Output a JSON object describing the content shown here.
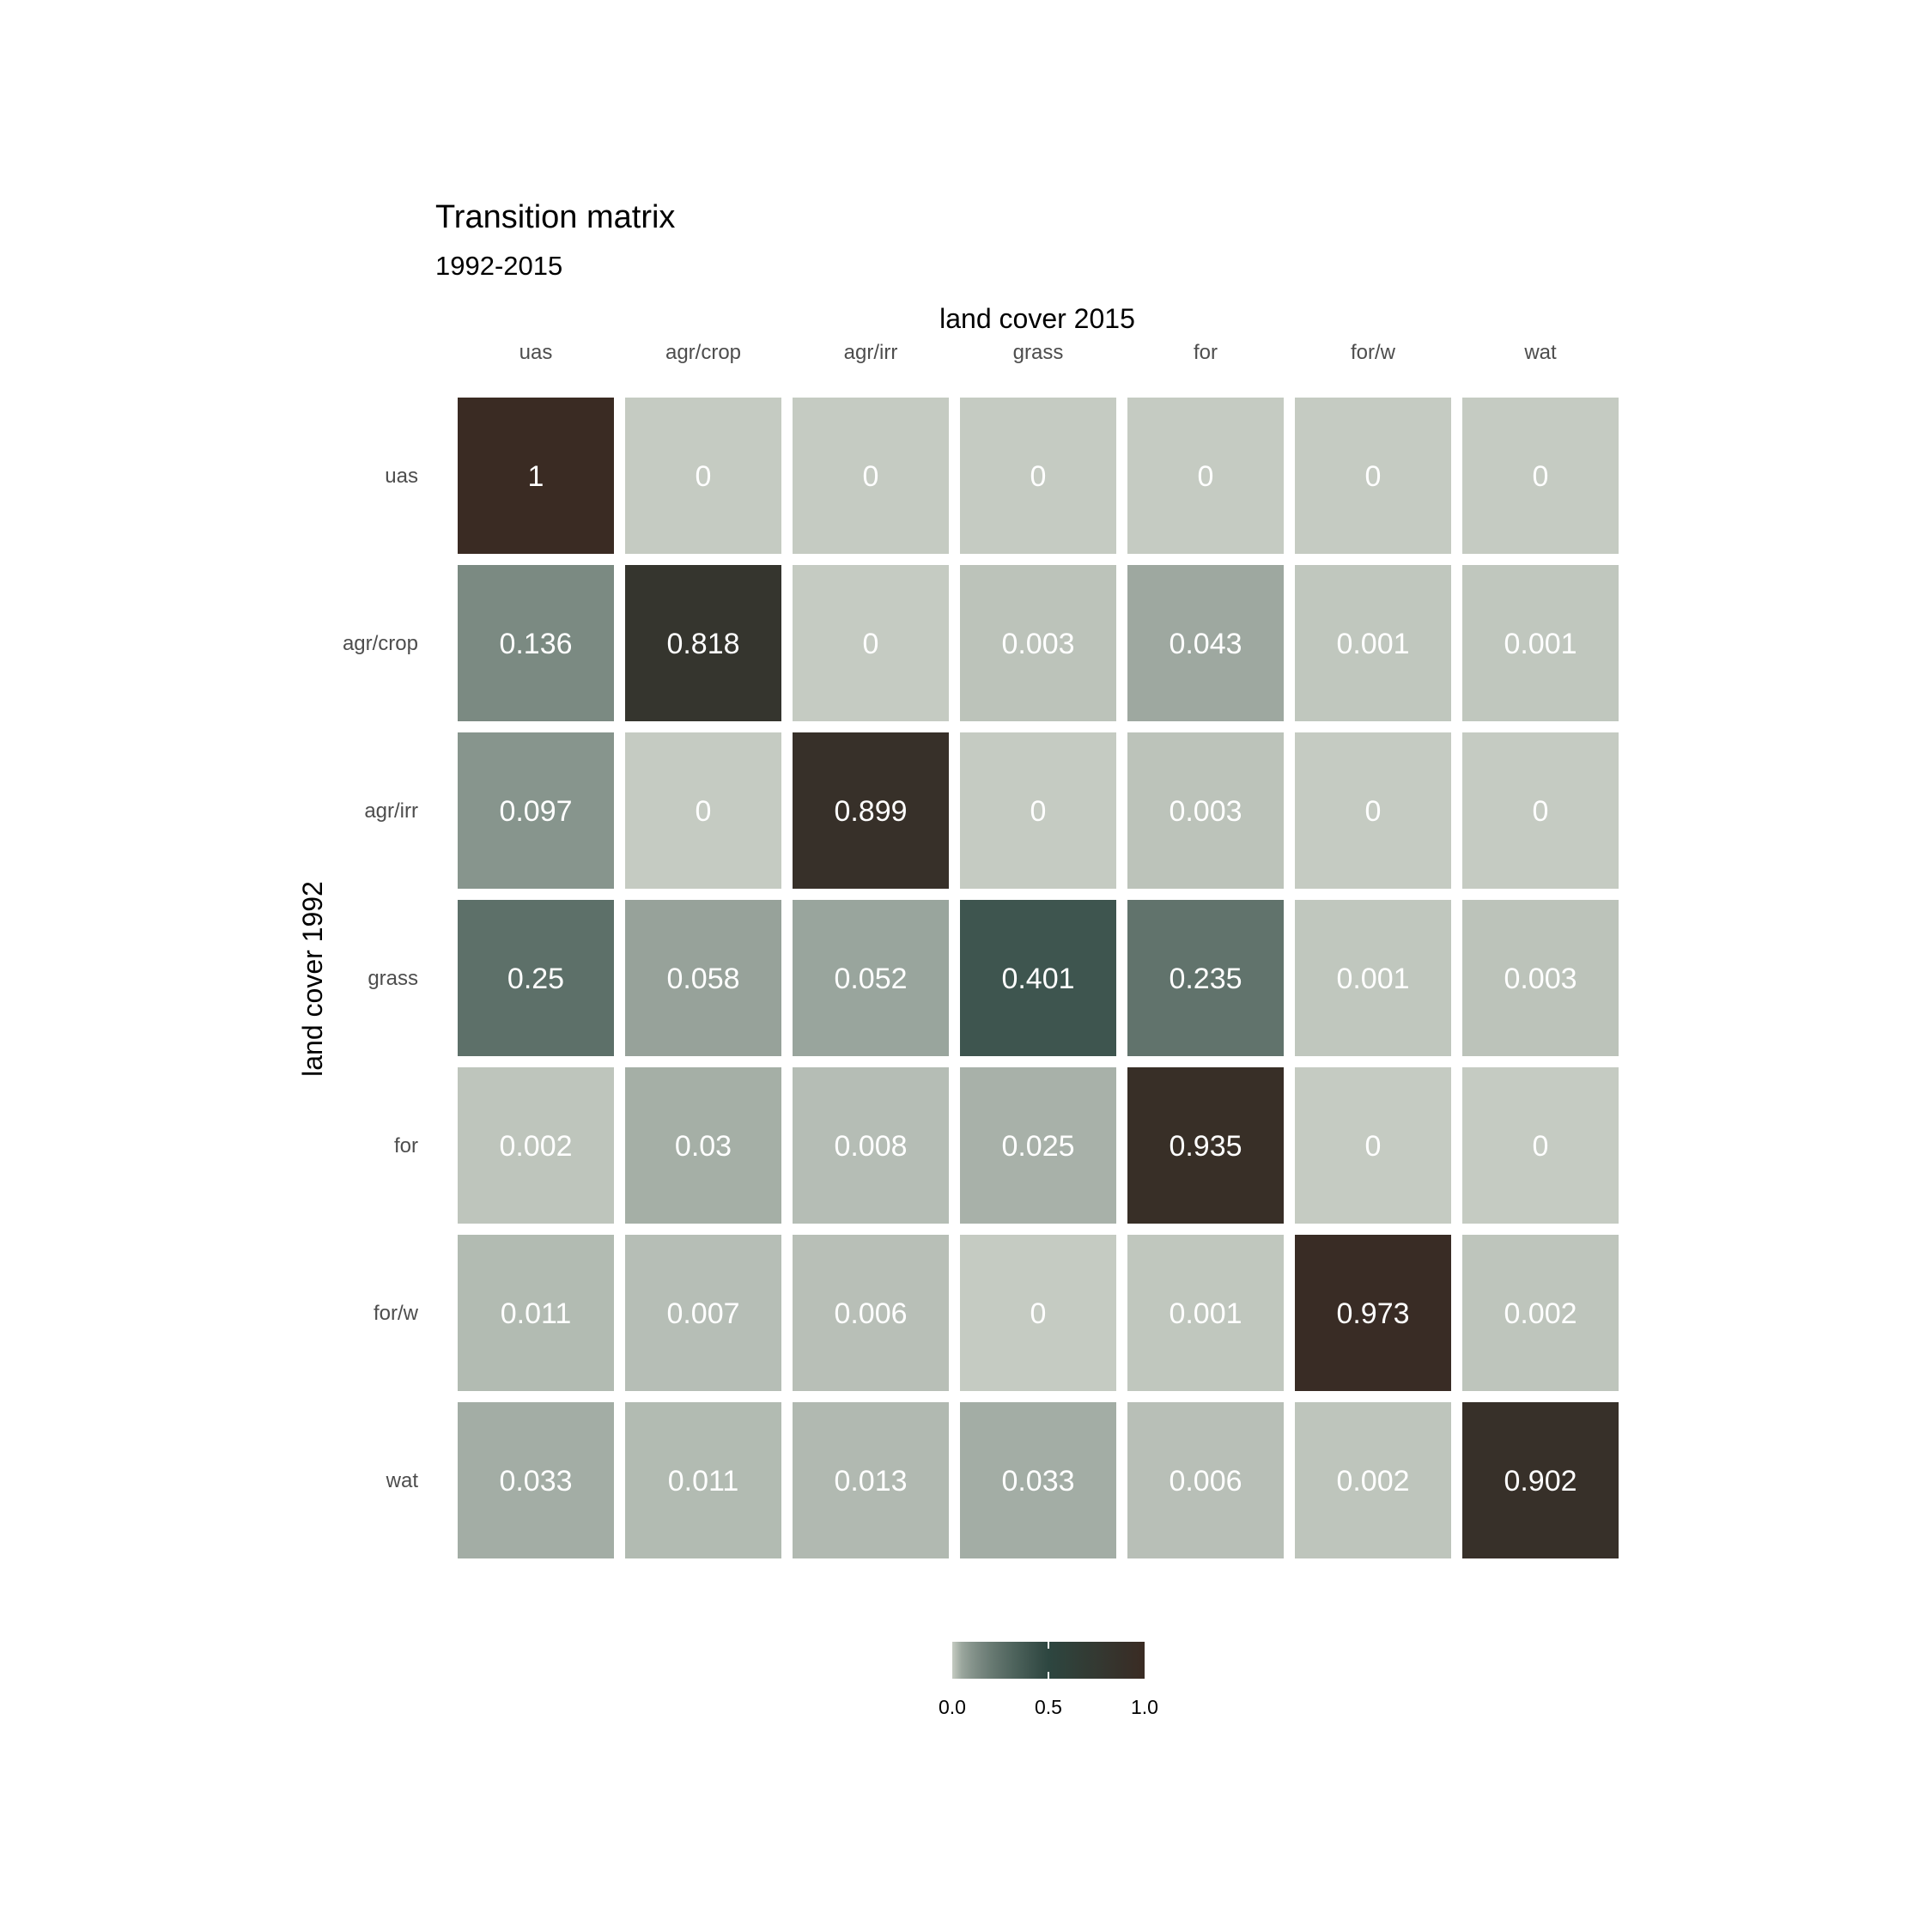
{
  "chart_data": {
    "type": "heatmap",
    "title": "Transition matrix",
    "subtitle": "1992-2015",
    "xlabel": "land cover 2015",
    "ylabel": "land cover 1992",
    "x_categories": [
      "uas",
      "agr/crop",
      "agr/irr",
      "grass",
      "for",
      "for/w",
      "wat"
    ],
    "y_categories": [
      "uas",
      "agr/crop",
      "agr/irr",
      "grass",
      "for",
      "for/w",
      "wat"
    ],
    "values": [
      [
        1,
        0,
        0,
        0,
        0,
        0,
        0
      ],
      [
        0.136,
        0.818,
        0,
        0.003,
        0.043,
        0.001,
        0.001
      ],
      [
        0.097,
        0,
        0.899,
        0,
        0.003,
        0,
        0
      ],
      [
        0.25,
        0.058,
        0.052,
        0.401,
        0.235,
        0.001,
        0.003
      ],
      [
        0.002,
        0.03,
        0.008,
        0.025,
        0.935,
        0,
        0
      ],
      [
        0.011,
        0.007,
        0.006,
        0,
        0.001,
        0.973,
        0.002
      ],
      [
        0.033,
        0.011,
        0.013,
        0.033,
        0.006,
        0.002,
        0.902
      ]
    ],
    "x_axis_position": "top",
    "legend": {
      "position": "bottom",
      "range": [
        0,
        1
      ],
      "ticks": [
        "0.0",
        "0.5",
        "1.0"
      ]
    },
    "colors": {
      "low": "#c5cbc2",
      "mid": "#2d4640",
      "high": "#3a2b23"
    },
    "grid": false
  }
}
